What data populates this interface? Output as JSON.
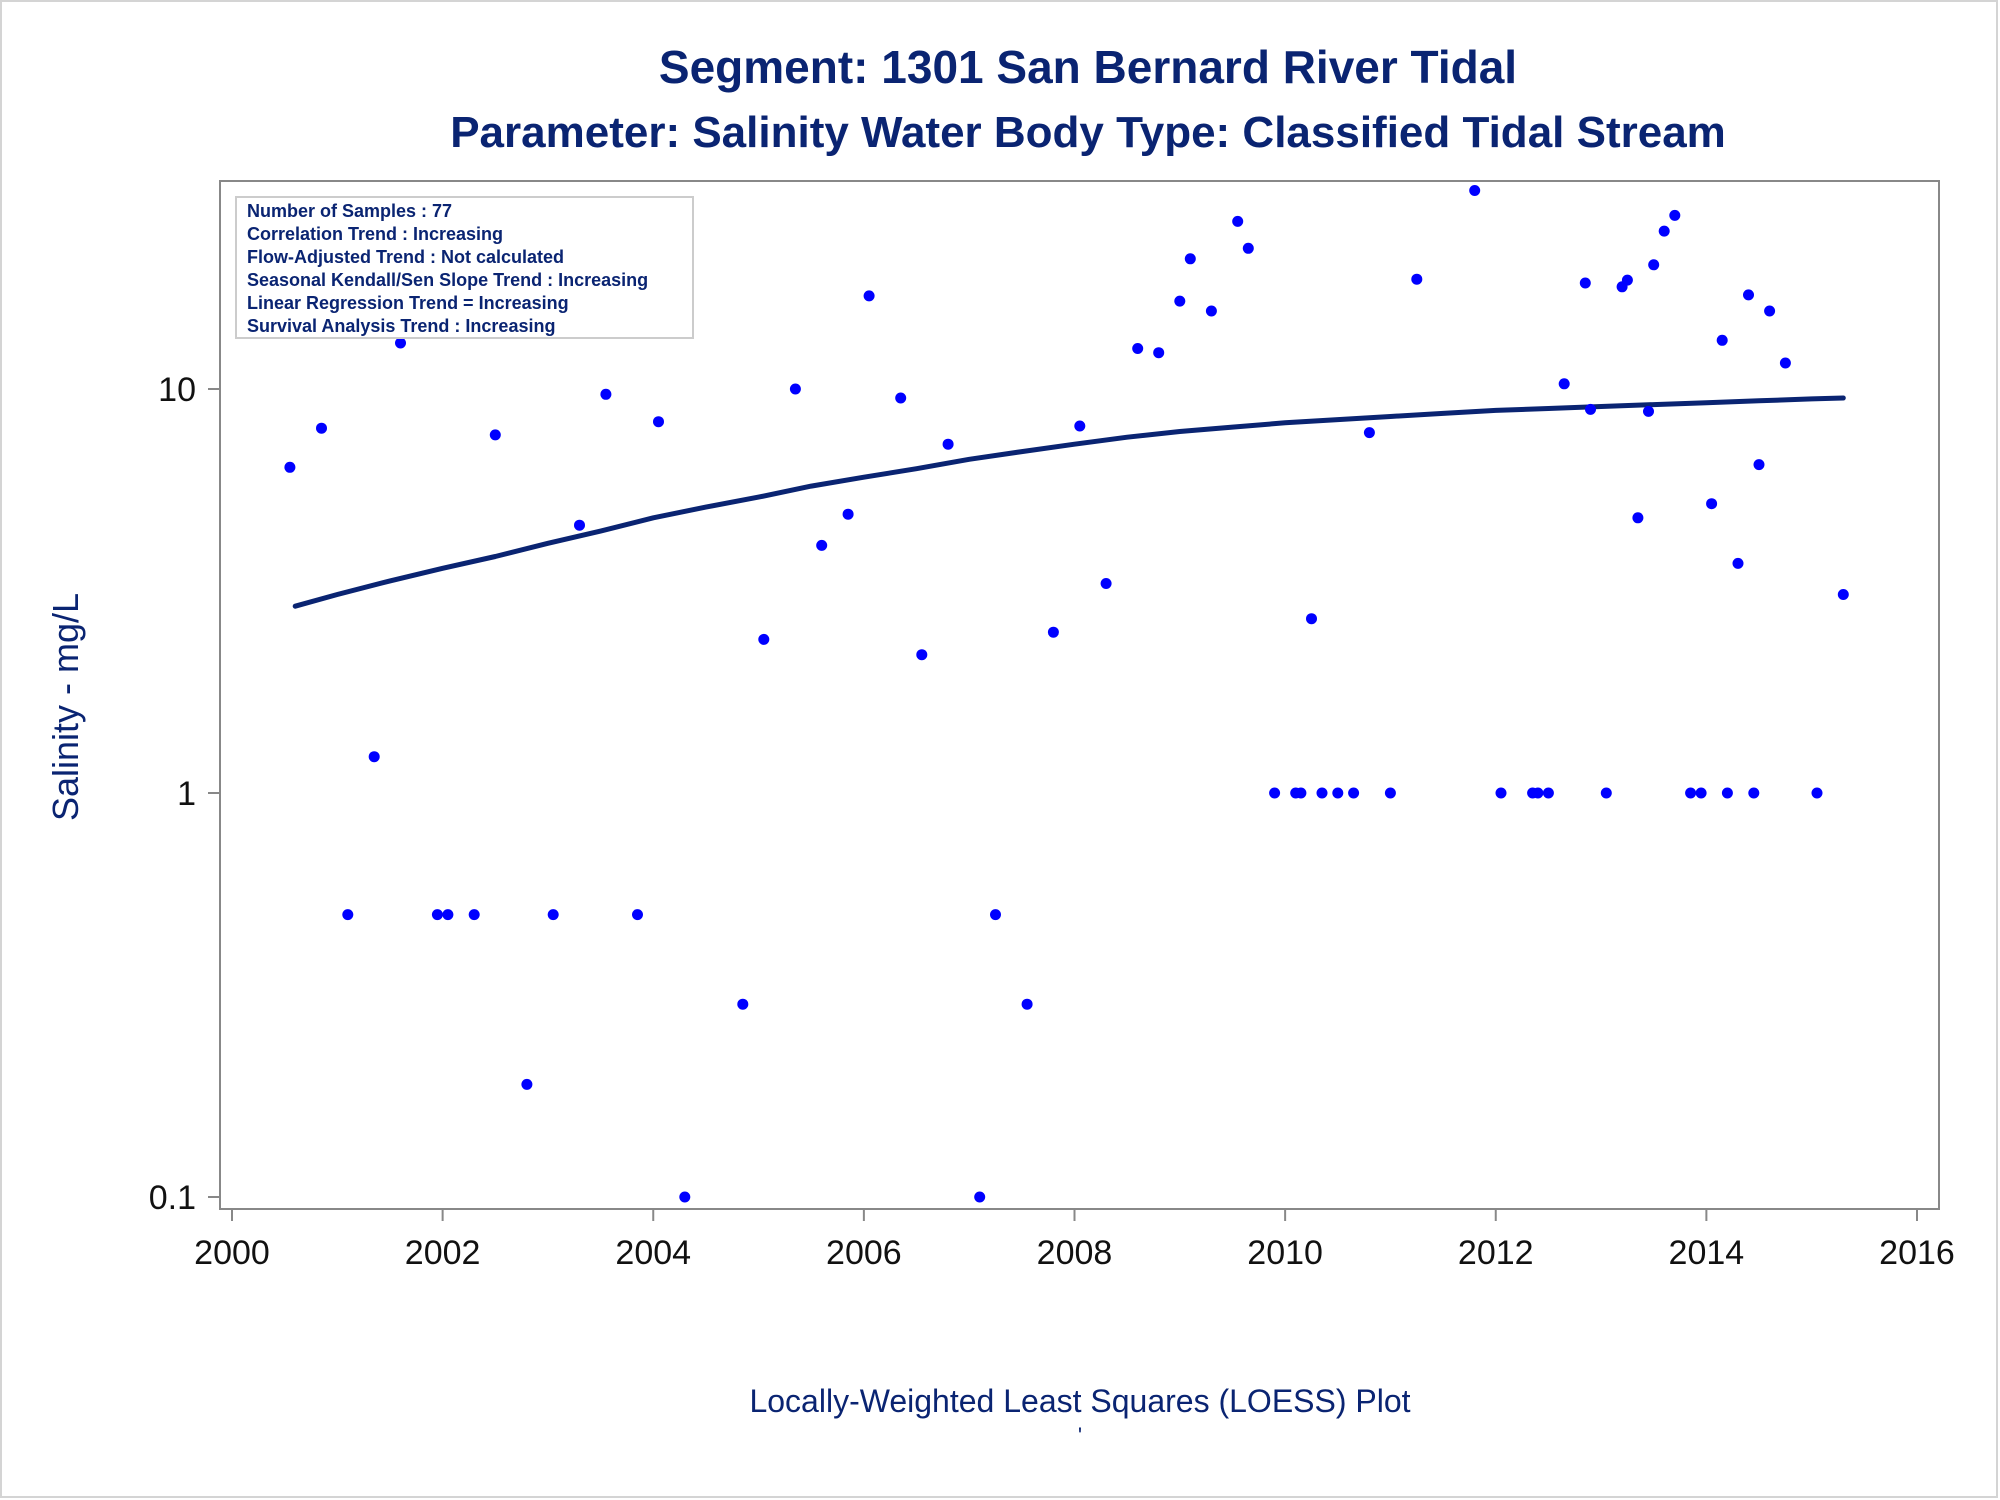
{
  "chart_data": {
    "type": "scatter",
    "title": "Segment: 1301  San Bernard River Tidal",
    "subtitle": "Parameter: Salinity   Water Body Type: Classified Tidal Stream",
    "xlabel": "Locally-Weighted Least Squares (LOESS) Plot",
    "ylabel": "Salinity - mg/L",
    "footnote": "'",
    "xlim": [
      2000,
      2016
    ],
    "ylim": [
      0.1,
      40
    ],
    "yscale": "log",
    "x_ticks": [
      2000,
      2002,
      2004,
      2006,
      2008,
      2010,
      2012,
      2014,
      2016
    ],
    "y_ticks": [
      {
        "value": 0.1,
        "label": "0.1"
      },
      {
        "value": 1,
        "label": "1"
      },
      {
        "value": 10,
        "label": "10"
      }
    ],
    "grid": false,
    "colors": {
      "points": "#0000ff",
      "loess": "#0a2472",
      "text": "#0a2472",
      "axis": "#888888"
    },
    "info_box": {
      "lines": [
        "Number of Samples : 77",
        "Correlation Trend : Increasing",
        "Flow-Adjusted Trend : Not calculated",
        "Seasonal Kendall/Sen Slope Trend : Increasing",
        "Linear Regression Trend = Increasing",
        "Survival Analysis Trend : Increasing"
      ],
      "placement": "top-left"
    },
    "series": [
      {
        "kind": "scatter",
        "points": [
          [
            2000.55,
            6.4
          ],
          [
            2000.85,
            8.0
          ],
          [
            2001.1,
            0.5
          ],
          [
            2001.35,
            1.23
          ],
          [
            2001.6,
            13.0
          ],
          [
            2001.95,
            0.5
          ],
          [
            2002.05,
            0.5
          ],
          [
            2002.3,
            0.5
          ],
          [
            2002.5,
            7.7
          ],
          [
            2002.8,
            0.19
          ],
          [
            2003.05,
            0.5
          ],
          [
            2003.3,
            4.6
          ],
          [
            2003.55,
            9.7
          ],
          [
            2003.85,
            0.5
          ],
          [
            2004.05,
            8.3
          ],
          [
            2004.3,
            0.1
          ],
          [
            2004.85,
            0.3
          ],
          [
            2005.05,
            2.4
          ],
          [
            2005.35,
            10.0
          ],
          [
            2005.6,
            4.1
          ],
          [
            2005.85,
            4.9
          ],
          [
            2006.05,
            17.0
          ],
          [
            2006.35,
            9.5
          ],
          [
            2006.55,
            2.2
          ],
          [
            2006.8,
            7.3
          ],
          [
            2007.1,
            0.1
          ],
          [
            2007.25,
            0.5
          ],
          [
            2007.55,
            0.3
          ],
          [
            2007.8,
            2.5
          ],
          [
            2008.05,
            8.1
          ],
          [
            2008.3,
            3.3
          ],
          [
            2008.6,
            12.6
          ],
          [
            2008.8,
            12.3
          ],
          [
            2009.0,
            16.5
          ],
          [
            2009.1,
            21.0
          ],
          [
            2009.3,
            15.6
          ],
          [
            2009.55,
            26.0
          ],
          [
            2009.65,
            22.3
          ],
          [
            2009.9,
            1.0
          ],
          [
            2010.1,
            1.0
          ],
          [
            2010.15,
            1.0
          ],
          [
            2010.25,
            2.7
          ],
          [
            2010.35,
            1.0
          ],
          [
            2010.5,
            1.0
          ],
          [
            2010.65,
            1.0
          ],
          [
            2010.8,
            7.8
          ],
          [
            2011.0,
            1.0
          ],
          [
            2011.25,
            18.7
          ],
          [
            2011.8,
            31.0
          ],
          [
            2012.05,
            1.0
          ],
          [
            2012.35,
            1.0
          ],
          [
            2012.4,
            1.0
          ],
          [
            2012.5,
            1.0
          ],
          [
            2012.65,
            10.3
          ],
          [
            2012.85,
            18.3
          ],
          [
            2012.9,
            8.9
          ],
          [
            2013.05,
            1.0
          ],
          [
            2013.2,
            17.9
          ],
          [
            2013.25,
            18.6
          ],
          [
            2013.35,
            4.8
          ],
          [
            2013.45,
            8.8
          ],
          [
            2013.5,
            20.3
          ],
          [
            2013.6,
            24.6
          ],
          [
            2013.7,
            26.9
          ],
          [
            2013.85,
            1.0
          ],
          [
            2013.95,
            1.0
          ],
          [
            2014.05,
            5.2
          ],
          [
            2014.15,
            13.2
          ],
          [
            2014.2,
            1.0
          ],
          [
            2014.3,
            3.7
          ],
          [
            2014.4,
            17.1
          ],
          [
            2014.45,
            1.0
          ],
          [
            2014.5,
            6.5
          ],
          [
            2014.6,
            15.6
          ],
          [
            2014.75,
            11.6
          ],
          [
            2015.05,
            1.0
          ],
          [
            2015.3,
            3.1
          ]
        ]
      },
      {
        "kind": "line",
        "name": "LOESS",
        "points": [
          [
            2000.6,
            2.9
          ],
          [
            2001.0,
            3.1
          ],
          [
            2001.5,
            3.35
          ],
          [
            2002.0,
            3.6
          ],
          [
            2002.5,
            3.85
          ],
          [
            2003.0,
            4.15
          ],
          [
            2003.5,
            4.45
          ],
          [
            2004.0,
            4.8
          ],
          [
            2004.5,
            5.1
          ],
          [
            2005.0,
            5.4
          ],
          [
            2005.5,
            5.75
          ],
          [
            2006.0,
            6.05
          ],
          [
            2006.5,
            6.35
          ],
          [
            2007.0,
            6.7
          ],
          [
            2007.5,
            7.0
          ],
          [
            2008.0,
            7.3
          ],
          [
            2008.5,
            7.6
          ],
          [
            2009.0,
            7.85
          ],
          [
            2009.5,
            8.05
          ],
          [
            2010.0,
            8.25
          ],
          [
            2010.5,
            8.4
          ],
          [
            2011.0,
            8.55
          ],
          [
            2011.5,
            8.7
          ],
          [
            2012.0,
            8.85
          ],
          [
            2012.5,
            8.95
          ],
          [
            2013.0,
            9.05
          ],
          [
            2013.5,
            9.15
          ],
          [
            2014.0,
            9.25
          ],
          [
            2014.5,
            9.35
          ],
          [
            2015.0,
            9.45
          ],
          [
            2015.3,
            9.5
          ]
        ]
      }
    ]
  }
}
